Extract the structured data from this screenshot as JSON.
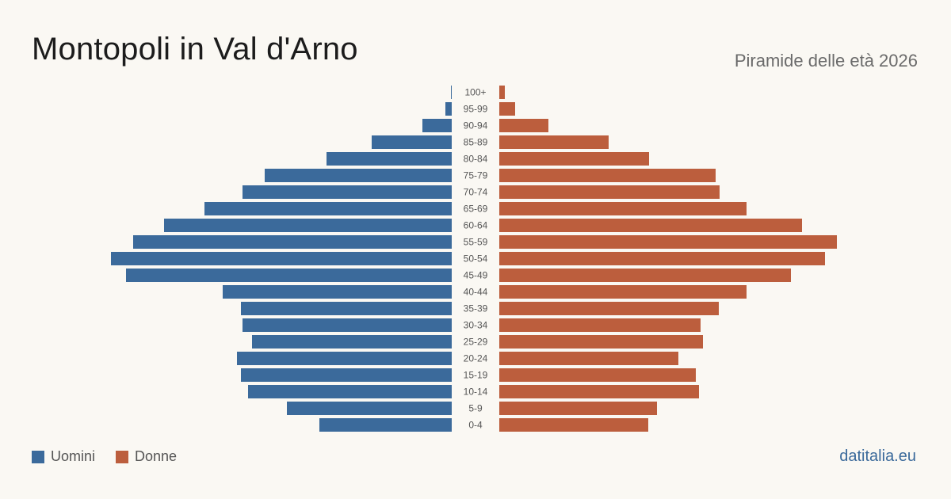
{
  "header": {
    "title": "Montopoli in Val d'Arno",
    "subtitle": "Piramide delle età 2026"
  },
  "legend": {
    "men_label": "Uomini",
    "women_label": "Donne"
  },
  "source": "datitalia.eu",
  "colors": {
    "men": "#3b6a9b",
    "women": "#bc5e3d"
  },
  "chart_data": {
    "type": "bar",
    "orientation": "horizontal-pyramid",
    "categories": [
      "100+",
      "95-99",
      "90-94",
      "85-89",
      "80-84",
      "75-79",
      "70-74",
      "65-69",
      "60-64",
      "55-59",
      "50-54",
      "45-49",
      "40-44",
      "35-39",
      "30-34",
      "25-29",
      "20-24",
      "15-19",
      "10-14",
      "5-9",
      "0-4"
    ],
    "series": [
      {
        "name": "Uomini",
        "values": [
          1,
          8,
          37,
          101,
          158,
          236,
          264,
          312,
          363,
          402,
          430,
          411,
          289,
          266,
          264,
          252,
          271,
          266,
          257,
          208,
          167
        ]
      },
      {
        "name": "Donne",
        "values": [
          7,
          20,
          62,
          138,
          189,
          273,
          278,
          312,
          382,
          426,
          411,
          368,
          312,
          277,
          254,
          257,
          226,
          248,
          252,
          199,
          188
        ]
      }
    ],
    "xlim": [
      0,
      430
    ],
    "grid": false,
    "legend_position": "bottom-left"
  }
}
